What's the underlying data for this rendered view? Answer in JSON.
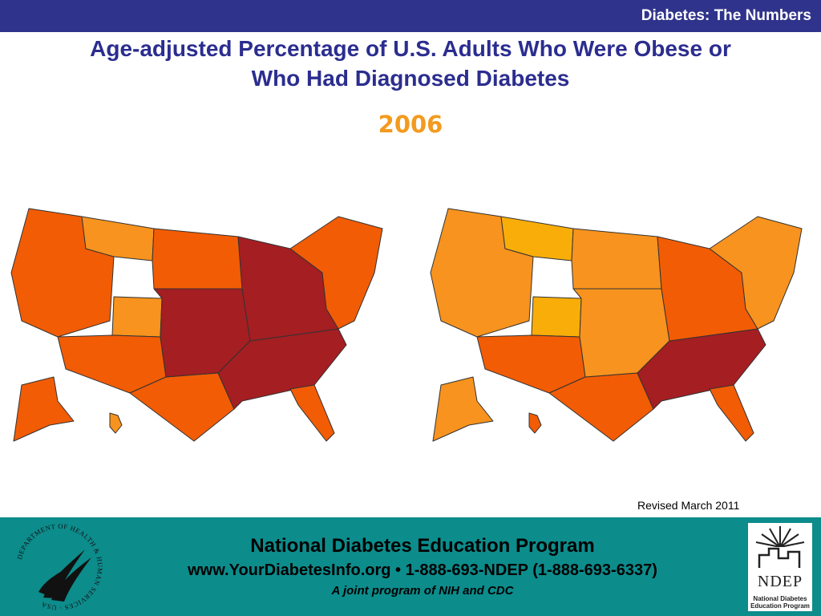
{
  "header": {
    "section_title": "Diabetes: The Numbers"
  },
  "slide": {
    "title_line1": "Age-adjusted Percentage of U.S. Adults Who Were Obese or",
    "title_line2": "Who Had Diagnosed Diabetes",
    "year": "2006",
    "revised": "Revised March 2011"
  },
  "maps": [
    {
      "name": "obesity",
      "colors": {
        "light": "#f7931e",
        "medium": "#f25c05",
        "dark": "#a41e22"
      },
      "regions": [
        {
          "id": "northwest",
          "level": "medium"
        },
        {
          "id": "montana",
          "level": "light"
        },
        {
          "id": "northern-plains",
          "level": "medium"
        },
        {
          "id": "colorado",
          "level": "light"
        },
        {
          "id": "southwest",
          "level": "medium"
        },
        {
          "id": "texas",
          "level": "medium"
        },
        {
          "id": "plains-core",
          "level": "dark"
        },
        {
          "id": "south",
          "level": "dark"
        },
        {
          "id": "michigan-midwest",
          "level": "dark"
        },
        {
          "id": "northeast",
          "level": "medium"
        },
        {
          "id": "florida",
          "level": "medium"
        },
        {
          "id": "alaska",
          "level": "medium"
        },
        {
          "id": "hawaii",
          "level": "light"
        }
      ]
    },
    {
      "name": "diabetes",
      "colors": {
        "lightest": "#f9ad09",
        "light": "#f7931e",
        "medium": "#f25c05",
        "dark": "#a41e22"
      },
      "regions": [
        {
          "id": "northwest",
          "level": "light"
        },
        {
          "id": "montana",
          "level": "lightest"
        },
        {
          "id": "northern-plains",
          "level": "light"
        },
        {
          "id": "colorado",
          "level": "lightest"
        },
        {
          "id": "southwest",
          "level": "medium"
        },
        {
          "id": "texas",
          "level": "medium"
        },
        {
          "id": "plains-core",
          "level": "light"
        },
        {
          "id": "south",
          "level": "dark"
        },
        {
          "id": "michigan-midwest",
          "level": "medium"
        },
        {
          "id": "northeast",
          "level": "light"
        },
        {
          "id": "florida",
          "level": "medium"
        },
        {
          "id": "alaska",
          "level": "light"
        },
        {
          "id": "hawaii",
          "level": "medium"
        }
      ]
    }
  ],
  "footer": {
    "program": "National Diabetes Education Program",
    "contact": "www.YourDiabetesInfo.org • 1-888-693-NDEP (1-888-693-6337)",
    "tagline": "A joint program of NIH and CDC",
    "hhs_seal_text": "DEPARTMENT OF HEALTH & HUMAN SERVICES · USA",
    "ndep_logo": "NDEP",
    "ndep_logo_sub1": "National Diabetes",
    "ndep_logo_sub2": "Education Program"
  }
}
